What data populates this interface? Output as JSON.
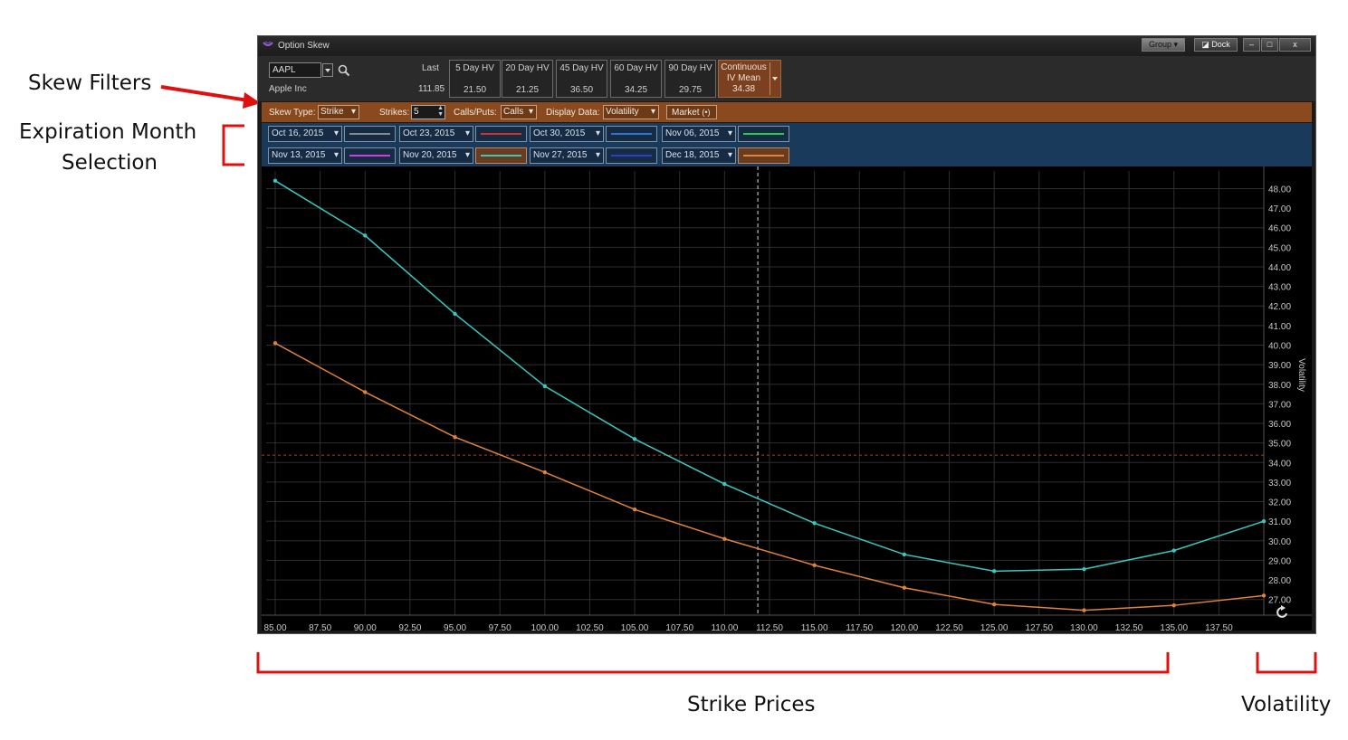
{
  "annotations": {
    "skew_filters": "Skew Filters",
    "expiration_line1": "Expiration Month",
    "expiration_line2": "Selection",
    "strike_prices": "Strike Prices",
    "volatility": "Volatility"
  },
  "window": {
    "title": "Option Skew",
    "group_label": "Group",
    "dock_label": "Dock",
    "minimize": "–",
    "maximize": "□",
    "close": "x"
  },
  "quote": {
    "symbol": "AAPL",
    "company": "Apple Inc",
    "last_label": "Last",
    "last_value": "111.85",
    "hv": [
      {
        "label": "5 Day HV",
        "value": "21.50"
      },
      {
        "label": "20 Day HV",
        "value": "21.25"
      },
      {
        "label": "45 Day HV",
        "value": "36.50"
      },
      {
        "label": "60 Day HV",
        "value": "34.25"
      },
      {
        "label": "90 Day HV",
        "value": "29.75"
      }
    ],
    "iv_line1": "Continuous",
    "iv_line2": "IV Mean",
    "iv_value": "34.38"
  },
  "filters": {
    "skew_type_label": "Skew Type:",
    "skew_type_value": "Strike",
    "strikes_label": "Strikes:",
    "strikes_value": "5",
    "calls_puts_label": "Calls/Puts:",
    "calls_puts_value": "Calls",
    "display_data_label": "Display Data:",
    "display_data_value": "Volatility",
    "market_label": "Market"
  },
  "expirations": [
    {
      "date": "Oct 16, 2015",
      "color": "#8a8a8a",
      "selected": false
    },
    {
      "date": "Oct 23, 2015",
      "color": "#d0342c",
      "selected": false
    },
    {
      "date": "Oct 30, 2015",
      "color": "#2f74d0",
      "selected": false
    },
    {
      "date": "Nov 06, 2015",
      "color": "#2ec84a",
      "selected": false
    },
    {
      "date": "Nov 13, 2015",
      "color": "#d040d8",
      "selected": false
    },
    {
      "date": "Nov 20, 2015",
      "color": "#38c8c0",
      "selected": true
    },
    {
      "date": "Nov 27, 2015",
      "color": "#2a3ec8",
      "selected": false
    },
    {
      "date": "Dec 18, 2015",
      "color": "#e0823a",
      "selected": true
    }
  ],
  "chart_data": {
    "type": "line",
    "ylabel": "Volatility",
    "xlim": [
      85,
      140
    ],
    "ylim": [
      26.2,
      48.9
    ],
    "x_ticks": [
      "85.00",
      "87.50",
      "90.00",
      "92.50",
      "95.00",
      "97.50",
      "100.00",
      "102.50",
      "105.00",
      "107.50",
      "110.00",
      "112.50",
      "115.00",
      "117.50",
      "120.00",
      "122.50",
      "125.00",
      "127.50",
      "130.00",
      "132.50",
      "135.00",
      "137.50"
    ],
    "y_ticks": [
      "48.00",
      "47.00",
      "46.00",
      "45.00",
      "44.00",
      "43.00",
      "42.00",
      "41.00",
      "40.00",
      "39.00",
      "38.00",
      "37.00",
      "36.00",
      "35.00",
      "34.00",
      "33.00",
      "32.00",
      "31.00",
      "30.00",
      "29.00",
      "28.00",
      "27.00"
    ],
    "last_price": 111.85,
    "iv_mean": 34.38,
    "series": [
      {
        "color": "#38c8c0",
        "x": [
          85,
          90,
          95,
          100,
          105,
          110,
          115,
          120,
          125,
          130,
          135,
          140
        ],
        "y": [
          48.4,
          45.6,
          41.6,
          37.9,
          35.2,
          32.9,
          30.9,
          29.3,
          28.45,
          28.55,
          29.5,
          31.0
        ]
      },
      {
        "color": "#e0823a",
        "x": [
          85,
          90,
          95,
          100,
          105,
          110,
          115,
          120,
          125,
          130,
          135,
          140
        ],
        "y": [
          40.1,
          37.6,
          35.3,
          33.5,
          31.6,
          30.1,
          28.75,
          27.6,
          26.75,
          26.45,
          26.7,
          27.2
        ]
      }
    ]
  }
}
